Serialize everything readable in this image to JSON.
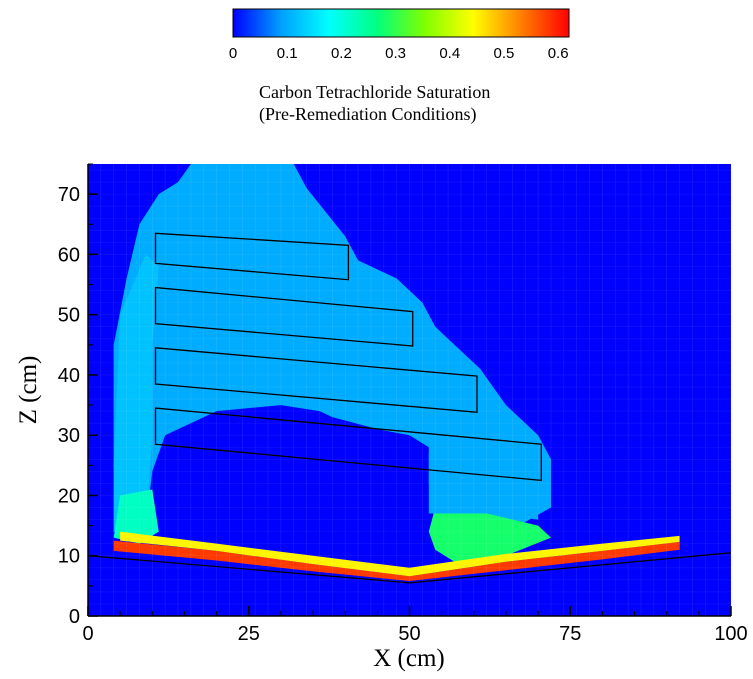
{
  "chart_data": {
    "type": "heatmap",
    "colorbar": {
      "min": 0,
      "max": 0.62,
      "ticks": [
        "0",
        "0.1",
        "0.2",
        "0.3",
        "0.4",
        "0.5",
        "0.6"
      ],
      "tick_values": [
        0,
        0.1,
        0.2,
        0.3,
        0.4,
        0.5,
        0.6
      ],
      "colormap": [
        "#0000ff",
        "#00a0ff",
        "#00ffff",
        "#00ff80",
        "#80ff00",
        "#ffff00",
        "#ff8000",
        "#ff0000"
      ],
      "title_line1": "Carbon Tetrachloride Saturation",
      "title_line2": "(Pre-Remediation Conditions)"
    },
    "xlabel": "X (cm)",
    "ylabel": "Z (cm)",
    "xlim": [
      0,
      100
    ],
    "ylim": [
      0,
      75
    ],
    "xticks": [
      "0",
      "25",
      "50",
      "75",
      "100"
    ],
    "xtick_values": [
      0,
      25,
      50,
      75,
      100
    ],
    "yticks": [
      "0",
      "10",
      "20",
      "30",
      "40",
      "50",
      "60",
      "70"
    ],
    "ytick_values": [
      0,
      10,
      20,
      30,
      40,
      50,
      60,
      70
    ],
    "background_color": "#0000ff",
    "lenses": [
      {
        "id": "lens-1",
        "corners": [
          [
            10.5,
            63.5
          ],
          [
            40.5,
            61.5
          ],
          [
            40.5,
            55.8
          ],
          [
            10.5,
            58.5
          ]
        ]
      },
      {
        "id": "lens-2",
        "corners": [
          [
            10.5,
            54.5
          ],
          [
            50.5,
            50.5
          ],
          [
            50.5,
            44.8
          ],
          [
            10.5,
            48.5
          ]
        ]
      },
      {
        "id": "lens-3",
        "corners": [
          [
            10.5,
            44.5
          ],
          [
            60.5,
            39.8
          ],
          [
            60.5,
            33.8
          ],
          [
            10.5,
            38.5
          ]
        ]
      },
      {
        "id": "lens-4",
        "corners": [
          [
            10.5,
            34.5
          ],
          [
            70.5,
            28.5
          ],
          [
            70.5,
            22.5
          ],
          [
            10.5,
            28.5
          ]
        ]
      }
    ],
    "v_boundary": [
      [
        0,
        10
      ],
      [
        50,
        5.5
      ],
      [
        100,
        10.5
      ]
    ],
    "saturation_zones": [
      {
        "id": "upper-plume",
        "value": 0.1,
        "polygon": [
          [
            6,
            56
          ],
          [
            8,
            65
          ],
          [
            11,
            70
          ],
          [
            14,
            72
          ],
          [
            16,
            75
          ],
          [
            32,
            75
          ],
          [
            34,
            71
          ],
          [
            37,
            67
          ],
          [
            40,
            63
          ],
          [
            42,
            59
          ],
          [
            48,
            56
          ],
          [
            52,
            52
          ],
          [
            54,
            48
          ],
          [
            58,
            44
          ],
          [
            61,
            41
          ],
          [
            65,
            35
          ],
          [
            70,
            30
          ],
          [
            72,
            26
          ],
          [
            72,
            18
          ],
          [
            67,
            15
          ],
          [
            60,
            14
          ],
          [
            55,
            17
          ],
          [
            53,
            22
          ],
          [
            53,
            28
          ],
          [
            50,
            30
          ],
          [
            45,
            31
          ],
          [
            38,
            33
          ],
          [
            36,
            34
          ],
          [
            30,
            35
          ],
          [
            20,
            34
          ],
          [
            12,
            30
          ],
          [
            10,
            24
          ],
          [
            9,
            15
          ],
          [
            5,
            14
          ],
          [
            4,
            25
          ],
          [
            4,
            45
          ]
        ]
      },
      {
        "id": "left-column",
        "value": 0.12,
        "polygon": [
          [
            4,
            14
          ],
          [
            4,
            25
          ],
          [
            5,
            50
          ],
          [
            9,
            60
          ],
          [
            11,
            58
          ],
          [
            10,
            45
          ],
          [
            10,
            30
          ],
          [
            9,
            15
          ]
        ]
      },
      {
        "id": "left-pool",
        "value": 0.22,
        "polygon": [
          [
            4,
            13
          ],
          [
            5,
            20
          ],
          [
            10,
            21
          ],
          [
            11,
            14
          ],
          [
            8,
            12
          ]
        ]
      },
      {
        "id": "right-pool",
        "value": 0.28,
        "polygon": [
          [
            53,
            14
          ],
          [
            54,
            18
          ],
          [
            62,
            17
          ],
          [
            70,
            15
          ],
          [
            72,
            13
          ],
          [
            65,
            10
          ],
          [
            57,
            9
          ],
          [
            54,
            11
          ]
        ]
      },
      {
        "id": "right-column",
        "value": 0.1,
        "polygon": [
          [
            53,
            17
          ],
          [
            53,
            27
          ],
          [
            56,
            30
          ],
          [
            62,
            28
          ],
          [
            68,
            24
          ],
          [
            70,
            20
          ],
          [
            70,
            16
          ],
          [
            62,
            17
          ]
        ]
      },
      {
        "id": "basal-pool",
        "value": 0.58,
        "polygon": [
          [
            4,
            12.5
          ],
          [
            20,
            10.8
          ],
          [
            35,
            8.6
          ],
          [
            50,
            6.6
          ],
          [
            65,
            9.0
          ],
          [
            80,
            10.8
          ],
          [
            92,
            12.3
          ],
          [
            92,
            11.0
          ],
          [
            80,
            9.4
          ],
          [
            65,
            7.6
          ],
          [
            50,
            5.8
          ],
          [
            35,
            7.4
          ],
          [
            20,
            9.2
          ],
          [
            4,
            10.8
          ]
        ]
      },
      {
        "id": "basal-upper-edge",
        "value": 0.45,
        "polygon": [
          [
            5,
            14.0
          ],
          [
            20,
            12.0
          ],
          [
            35,
            10.0
          ],
          [
            50,
            8.0
          ],
          [
            65,
            10.3
          ],
          [
            80,
            12.0
          ],
          [
            92,
            13.3
          ],
          [
            92,
            12.3
          ],
          [
            80,
            10.8
          ],
          [
            65,
            9.0
          ],
          [
            50,
            6.6
          ],
          [
            35,
            8.6
          ],
          [
            20,
            10.8
          ],
          [
            5,
            12.5
          ]
        ]
      }
    ]
  }
}
